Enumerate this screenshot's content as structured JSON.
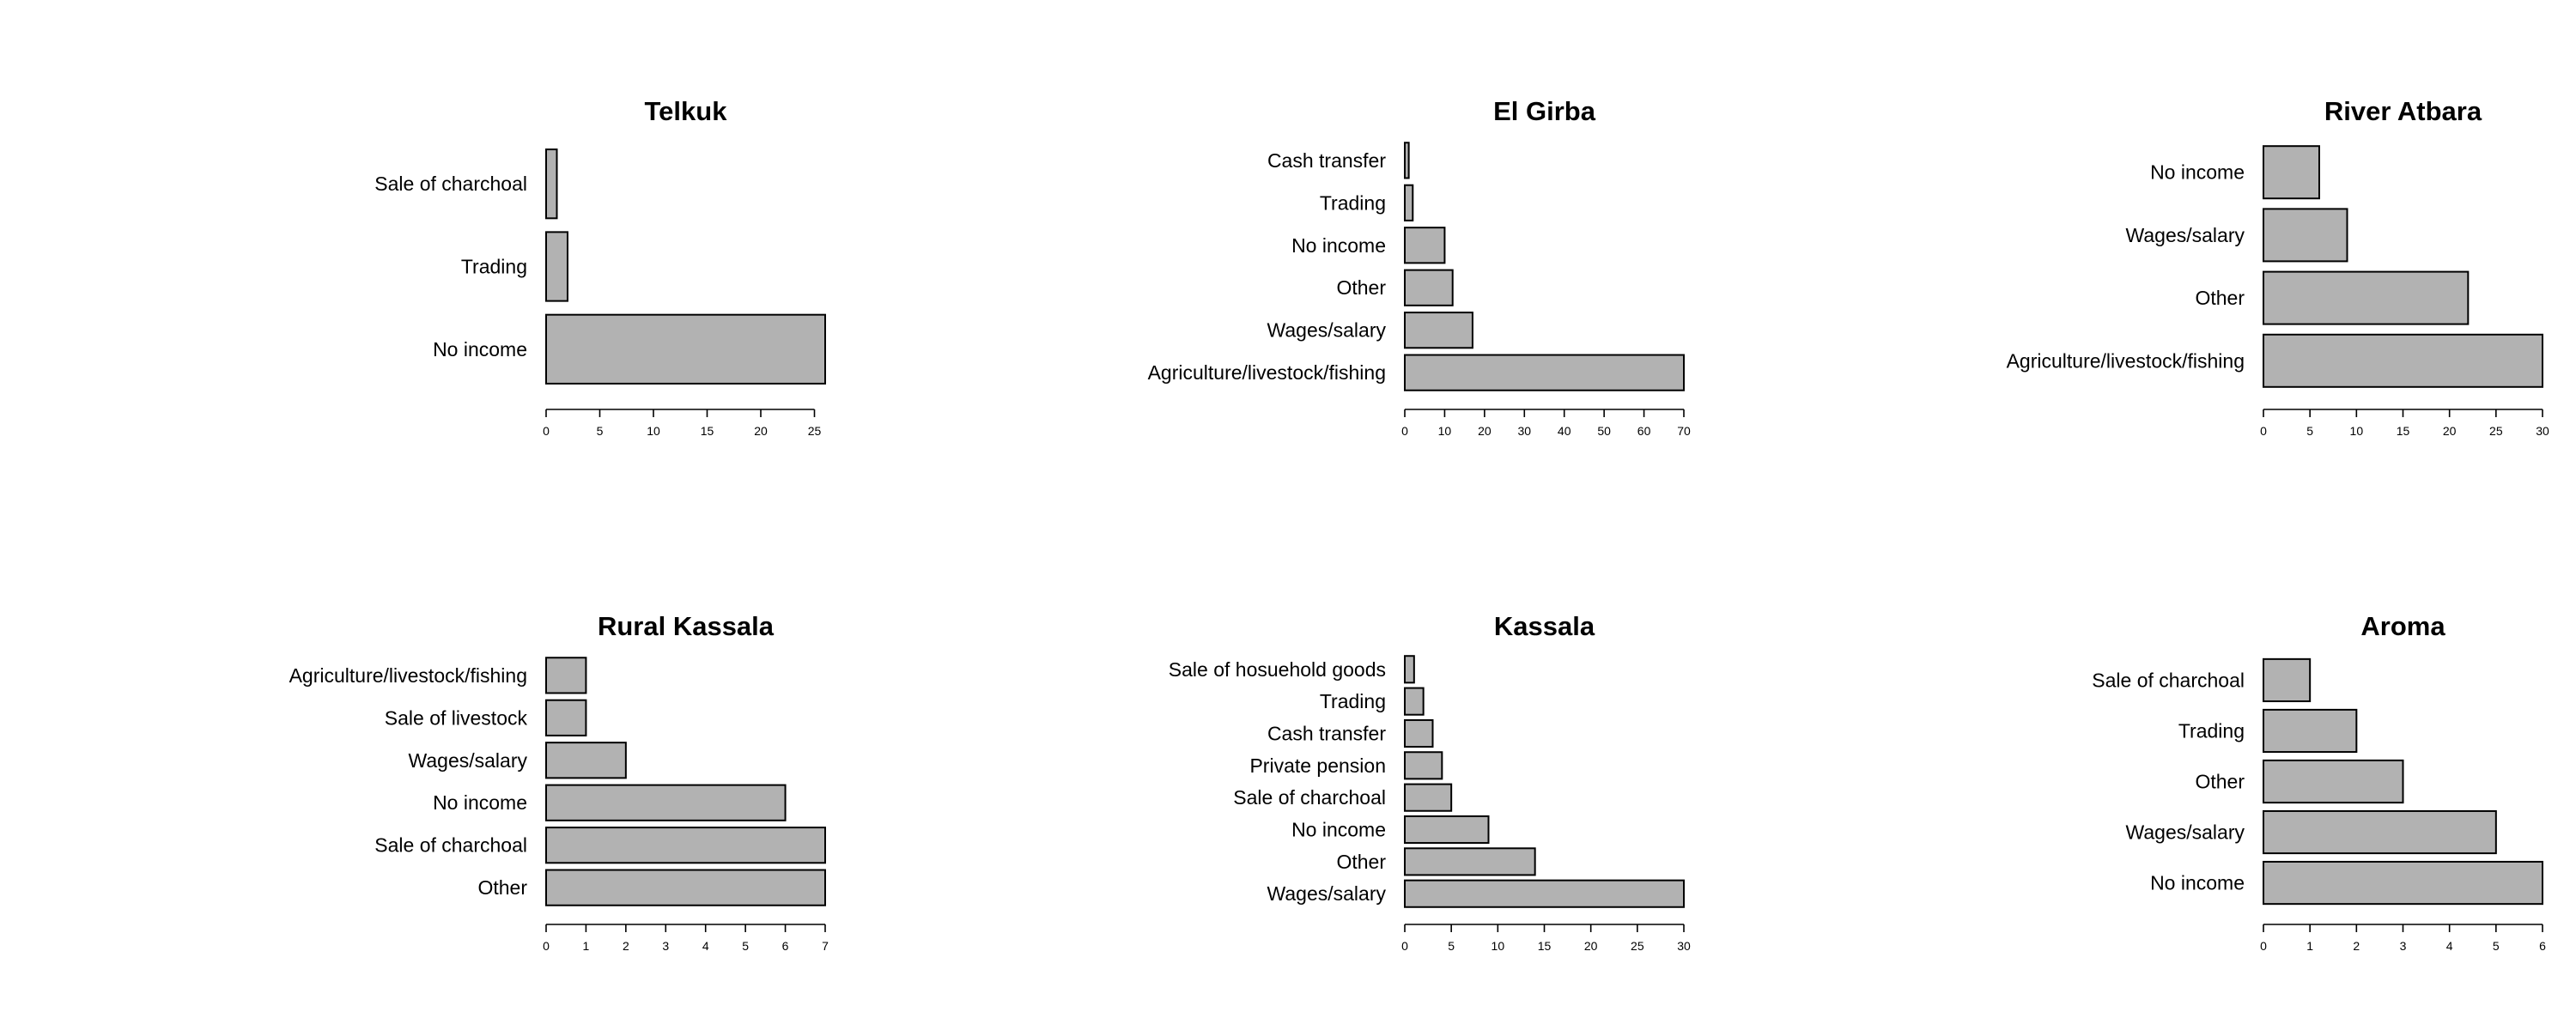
{
  "chart_data": [
    {
      "type": "bar",
      "orientation": "horizontal",
      "title": "Telkuk",
      "categories": [
        "No income",
        "Trading",
        "Sale of charchoal"
      ],
      "values": [
        26,
        2,
        1
      ],
      "xticks": [
        0,
        5,
        10,
        15,
        20,
        25
      ],
      "xlim": [
        0,
        26
      ]
    },
    {
      "type": "bar",
      "orientation": "horizontal",
      "title": "El Girba",
      "categories": [
        "Agriculture/livestock/fishing",
        "Wages/salary",
        "Other",
        "No income",
        "Trading",
        "Cash transfer"
      ],
      "values": [
        70,
        17,
        12,
        10,
        2,
        1
      ],
      "xticks": [
        0,
        10,
        20,
        30,
        40,
        50,
        60,
        70
      ],
      "xlim": [
        0,
        70
      ]
    },
    {
      "type": "bar",
      "orientation": "horizontal",
      "title": "River Atbara",
      "categories": [
        "Agriculture/livestock/fishing",
        "Other",
        "Wages/salary",
        "No income"
      ],
      "values": [
        30,
        22,
        9,
        6
      ],
      "xticks": [
        0,
        5,
        10,
        15,
        20,
        25,
        30
      ],
      "xlim": [
        0,
        30
      ]
    },
    {
      "type": "bar",
      "orientation": "horizontal",
      "title": "Rural Kassala",
      "categories": [
        "Other",
        "Sale of charchoal",
        "No income",
        "Wages/salary",
        "Sale of livestock",
        "Agriculture/livestock/fishing"
      ],
      "values": [
        7,
        7,
        6,
        2,
        1,
        1
      ],
      "xticks": [
        0,
        1,
        2,
        3,
        4,
        5,
        6,
        7
      ],
      "xlim": [
        0,
        7
      ]
    },
    {
      "type": "bar",
      "orientation": "horizontal",
      "title": "Kassala",
      "categories": [
        "Wages/salary",
        "Other",
        "No income",
        "Sale of charchoal",
        "Private pension",
        "Cash transfer",
        "Trading",
        "Sale of hosuehold goods"
      ],
      "values": [
        30,
        14,
        9,
        5,
        4,
        3,
        2,
        1
      ],
      "xticks": [
        0,
        5,
        10,
        15,
        20,
        25,
        30
      ],
      "xlim": [
        0,
        30
      ]
    },
    {
      "type": "bar",
      "orientation": "horizontal",
      "title": "Aroma",
      "categories": [
        "No income",
        "Wages/salary",
        "Other",
        "Trading",
        "Sale of charchoal"
      ],
      "values": [
        6,
        5,
        3,
        2,
        1
      ],
      "xticks": [
        0,
        1,
        2,
        3,
        4,
        5,
        6
      ],
      "xlim": [
        0,
        6
      ]
    }
  ]
}
